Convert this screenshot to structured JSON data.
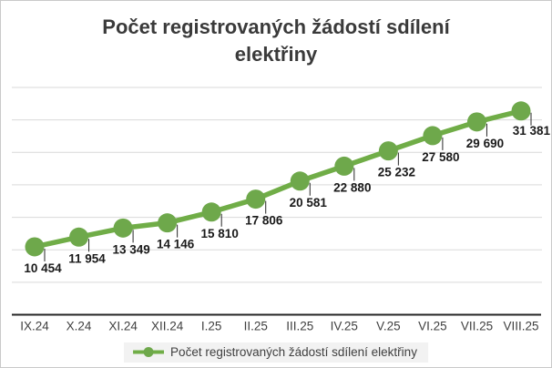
{
  "chart": {
    "title": "Počet registrovaných žádostí sdílení elektřiny"
  },
  "chart_data": {
    "type": "line",
    "title": "Počet registrovaných žádostí sdílení elektřiny",
    "categories": [
      "IX.24",
      "X.24",
      "XI.24",
      "XII.24",
      "I.25",
      "II.25",
      "III.25",
      "IV.25",
      "V.25",
      "VI.25",
      "VII.25",
      "VIII.25"
    ],
    "series": [
      {
        "name": "Počet registrovaných žádostí sdílení elektřiny",
        "values": [
          10454,
          11954,
          13349,
          14146,
          15810,
          17806,
          20581,
          22880,
          25232,
          27580,
          29690,
          31381
        ],
        "labels": [
          "10 454",
          "11 954",
          "13 349",
          "14 146",
          "15 810",
          "17 806",
          "20 581",
          "22 880",
          "25 232",
          "27 580",
          "29 690",
          "31 381"
        ]
      }
    ],
    "xlabel": "",
    "ylabel": "",
    "ylim": [
      0,
      35000
    ],
    "grid_step": 5000,
    "grid": "horizontal-only",
    "y_axis_tick_labels_visible": false,
    "legend_position": "bottom",
    "data_labels_visible": true,
    "colors": {
      "series": "#70AD47",
      "marker": "#6EA84B",
      "axis_line": "#262626",
      "gridline": "#D9D9D9",
      "leader_line": "#262626",
      "data_label": "#1A1A1A",
      "axis_label": "#404040",
      "title": "#3A3A3A",
      "legend_bg": "#F2F2F2",
      "legend_text": "#3F3F3F",
      "background": "#FFFFFF",
      "border": "#C9C9C9"
    }
  }
}
